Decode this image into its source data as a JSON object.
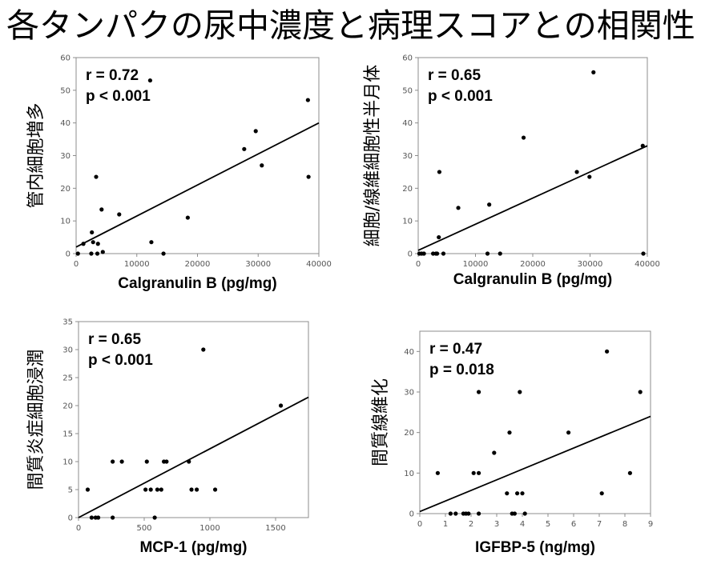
{
  "title": "各タンパクの尿中濃度と病理スコアとの相関性",
  "chart_data": [
    {
      "type": "scatter",
      "xlabel": "Calgranulin B (pg/mg)",
      "ylabel": "管内細胞増多",
      "xlim": [
        0,
        40000
      ],
      "ylim": [
        0,
        60
      ],
      "xticks": [
        0,
        10000,
        20000,
        30000,
        40000
      ],
      "yticks": [
        0,
        10,
        20,
        30,
        40,
        50,
        60
      ],
      "stats": {
        "r": "r = 0.72",
        "p": "p < 0.001"
      },
      "points": [
        {
          "x": 300,
          "y": 0
        },
        {
          "x": 1200,
          "y": 3
        },
        {
          "x": 2500,
          "y": 0
        },
        {
          "x": 2600,
          "y": 6.5
        },
        {
          "x": 2800,
          "y": 3.5
        },
        {
          "x": 3300,
          "y": 23.5
        },
        {
          "x": 3500,
          "y": 0
        },
        {
          "x": 3600,
          "y": 3
        },
        {
          "x": 4200,
          "y": 13.5
        },
        {
          "x": 4400,
          "y": 0.5
        },
        {
          "x": 7100,
          "y": 12
        },
        {
          "x": 12400,
          "y": 3.5
        },
        {
          "x": 14400,
          "y": 0
        },
        {
          "x": 18400,
          "y": 11
        },
        {
          "x": 27700,
          "y": 32
        },
        {
          "x": 29600,
          "y": 37.5
        },
        {
          "x": 30600,
          "y": 27
        },
        {
          "x": 38200,
          "y": 47
        },
        {
          "x": 38300,
          "y": 23.5
        },
        {
          "x": 12200,
          "y": 53
        }
      ],
      "fit": {
        "x": [
          0,
          40000
        ],
        "y": [
          2,
          40
        ]
      }
    },
    {
      "type": "scatter",
      "xlabel": "Calgranulin B (pg/mg)",
      "ylabel": "細胞/線維細胞性半月体",
      "xlim": [
        0,
        40000
      ],
      "ylim": [
        0,
        60
      ],
      "xticks": [
        0,
        10000,
        20000,
        30000,
        40000
      ],
      "yticks": [
        0,
        10,
        20,
        30,
        40,
        50,
        60
      ],
      "stats": {
        "r": "r = 0.65",
        "p": "p < 0.001"
      },
      "points": [
        {
          "x": 200,
          "y": 0
        },
        {
          "x": 600,
          "y": 0
        },
        {
          "x": 1000,
          "y": 0
        },
        {
          "x": 2600,
          "y": 0
        },
        {
          "x": 3100,
          "y": 0
        },
        {
          "x": 3300,
          "y": 0
        },
        {
          "x": 3600,
          "y": 5
        },
        {
          "x": 3700,
          "y": 25
        },
        {
          "x": 4400,
          "y": 0
        },
        {
          "x": 7000,
          "y": 14
        },
        {
          "x": 12100,
          "y": 0
        },
        {
          "x": 12400,
          "y": 15
        },
        {
          "x": 14300,
          "y": 0
        },
        {
          "x": 18400,
          "y": 35.5
        },
        {
          "x": 27700,
          "y": 25
        },
        {
          "x": 29900,
          "y": 23.5
        },
        {
          "x": 30600,
          "y": 55.5
        },
        {
          "x": 39200,
          "y": 33
        },
        {
          "x": 39300,
          "y": 0
        }
      ],
      "fit": {
        "x": [
          0,
          40000
        ],
        "y": [
          1,
          33
        ]
      }
    },
    {
      "type": "scatter",
      "xlabel": "MCP-1 (pg/mg)",
      "ylabel": "間質炎症細胞浸潤",
      "xlim": [
        0,
        1750
      ],
      "ylim": [
        0,
        35
      ],
      "xticks": [
        0,
        500,
        1000,
        1500
      ],
      "yticks": [
        0,
        5,
        10,
        15,
        20,
        25,
        30,
        35
      ],
      "stats": {
        "r": "r = 0.65",
        "p": "p < 0.001"
      },
      "points": [
        {
          "x": 70,
          "y": 5
        },
        {
          "x": 100,
          "y": 0
        },
        {
          "x": 130,
          "y": 0
        },
        {
          "x": 150,
          "y": 0
        },
        {
          "x": 260,
          "y": 10
        },
        {
          "x": 260,
          "y": 0
        },
        {
          "x": 330,
          "y": 10
        },
        {
          "x": 510,
          "y": 5
        },
        {
          "x": 520,
          "y": 10
        },
        {
          "x": 550,
          "y": 5
        },
        {
          "x": 580,
          "y": 0
        },
        {
          "x": 600,
          "y": 5
        },
        {
          "x": 630,
          "y": 5
        },
        {
          "x": 650,
          "y": 10
        },
        {
          "x": 670,
          "y": 10
        },
        {
          "x": 840,
          "y": 10
        },
        {
          "x": 860,
          "y": 5
        },
        {
          "x": 900,
          "y": 5
        },
        {
          "x": 950,
          "y": 30
        },
        {
          "x": 1040,
          "y": 5
        },
        {
          "x": 1540,
          "y": 20
        }
      ],
      "fit": {
        "x": [
          0,
          1750
        ],
        "y": [
          0,
          21.5
        ]
      }
    },
    {
      "type": "scatter",
      "xlabel": "IGFBP-5 (ng/mg)",
      "ylabel": "間質線維化",
      "xlim": [
        0,
        9
      ],
      "ylim": [
        0,
        45
      ],
      "xticks": [
        0,
        1,
        2,
        3,
        4,
        5,
        6,
        7,
        8,
        9
      ],
      "yticks": [
        0,
        10,
        20,
        30,
        40
      ],
      "stats": {
        "r": "r = 0.47",
        "p": "p = 0.018"
      },
      "points": [
        {
          "x": 0.7,
          "y": 10
        },
        {
          "x": 1.2,
          "y": 0
        },
        {
          "x": 1.4,
          "y": 0
        },
        {
          "x": 1.7,
          "y": 0
        },
        {
          "x": 1.8,
          "y": 0
        },
        {
          "x": 1.9,
          "y": 0
        },
        {
          "x": 2.1,
          "y": 10
        },
        {
          "x": 2.3,
          "y": 10
        },
        {
          "x": 2.3,
          "y": 30
        },
        {
          "x": 2.3,
          "y": 0
        },
        {
          "x": 2.9,
          "y": 15
        },
        {
          "x": 3.4,
          "y": 5
        },
        {
          "x": 3.5,
          "y": 20
        },
        {
          "x": 3.6,
          "y": 0
        },
        {
          "x": 3.7,
          "y": 0
        },
        {
          "x": 3.8,
          "y": 5
        },
        {
          "x": 3.9,
          "y": 30
        },
        {
          "x": 4.0,
          "y": 5
        },
        {
          "x": 4.1,
          "y": 0
        },
        {
          "x": 5.8,
          "y": 20
        },
        {
          "x": 7.1,
          "y": 5
        },
        {
          "x": 7.3,
          "y": 40
        },
        {
          "x": 8.2,
          "y": 10
        },
        {
          "x": 8.6,
          "y": 30
        }
      ],
      "fit": {
        "x": [
          0,
          9
        ],
        "y": [
          0.5,
          24
        ]
      }
    }
  ]
}
